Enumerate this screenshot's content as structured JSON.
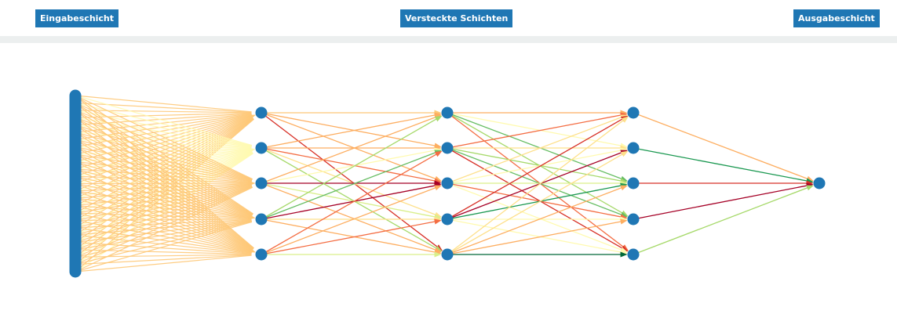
{
  "labels": {
    "input": "Eingabeschicht",
    "hidden": "Versteckte Schichten",
    "output": "Ausgabeschicht"
  },
  "colors": {
    "node": "#1f77b4",
    "label_bg": "#1f77b4",
    "label_text": "#ffffff",
    "divider": "#ecefef"
  },
  "network": {
    "layers": [
      {
        "name": "input",
        "nodes": 1,
        "bar": true
      },
      {
        "name": "hidden-1",
        "nodes": 5
      },
      {
        "name": "hidden-2",
        "nodes": 5
      },
      {
        "name": "hidden-3",
        "nodes": 5
      },
      {
        "name": "output",
        "nodes": 1
      }
    ],
    "input_fan_colors": [
      "#fec877",
      "#fffab0",
      "#fec877",
      "#fec877",
      "#fec877"
    ],
    "edges": [
      {
        "from": [
          1,
          0
        ],
        "to": [
          2,
          0
        ],
        "color": "#fec877"
      },
      {
        "from": [
          1,
          0
        ],
        "to": [
          2,
          1
        ],
        "color": "#fdae61"
      },
      {
        "from": [
          1,
          0
        ],
        "to": [
          2,
          2
        ],
        "color": "#fdae61"
      },
      {
        "from": [
          1,
          0
        ],
        "to": [
          2,
          4
        ],
        "color": "#d73027"
      },
      {
        "from": [
          1,
          1
        ],
        "to": [
          2,
          0
        ],
        "color": "#fdae61"
      },
      {
        "from": [
          1,
          1
        ],
        "to": [
          2,
          1
        ],
        "color": "#fdae61"
      },
      {
        "from": [
          1,
          1
        ],
        "to": [
          2,
          2
        ],
        "color": "#f46d43"
      },
      {
        "from": [
          1,
          1
        ],
        "to": [
          2,
          3
        ],
        "color": "#fee08b"
      },
      {
        "from": [
          1,
          1
        ],
        "to": [
          2,
          4
        ],
        "color": "#a6d96a"
      },
      {
        "from": [
          1,
          2
        ],
        "to": [
          2,
          0
        ],
        "color": "#fdae61"
      },
      {
        "from": [
          1,
          2
        ],
        "to": [
          2,
          1
        ],
        "color": "#fffab0"
      },
      {
        "from": [
          1,
          2
        ],
        "to": [
          2,
          2
        ],
        "color": "#a50026"
      },
      {
        "from": [
          1,
          2
        ],
        "to": [
          2,
          3
        ],
        "color": "#d9ef8b"
      },
      {
        "from": [
          1,
          2
        ],
        "to": [
          2,
          4
        ],
        "color": "#fdae61"
      },
      {
        "from": [
          1,
          3
        ],
        "to": [
          2,
          0
        ],
        "color": "#a6d96a"
      },
      {
        "from": [
          1,
          3
        ],
        "to": [
          2,
          1
        ],
        "color": "#66bd63"
      },
      {
        "from": [
          1,
          3
        ],
        "to": [
          2,
          2
        ],
        "color": "#a50026"
      },
      {
        "from": [
          1,
          3
        ],
        "to": [
          2,
          3
        ],
        "color": "#fee08b"
      },
      {
        "from": [
          1,
          3
        ],
        "to": [
          2,
          4
        ],
        "color": "#fdae61"
      },
      {
        "from": [
          1,
          4
        ],
        "to": [
          2,
          1
        ],
        "color": "#f46d43"
      },
      {
        "from": [
          1,
          4
        ],
        "to": [
          2,
          2
        ],
        "color": "#fdae61"
      },
      {
        "from": [
          1,
          4
        ],
        "to": [
          2,
          3
        ],
        "color": "#f46d43"
      },
      {
        "from": [
          1,
          4
        ],
        "to": [
          2,
          4
        ],
        "color": "#d9ef8b"
      },
      {
        "from": [
          2,
          0
        ],
        "to": [
          3,
          0
        ],
        "color": "#fdae61"
      },
      {
        "from": [
          2,
          0
        ],
        "to": [
          3,
          1
        ],
        "color": "#fffab0"
      },
      {
        "from": [
          2,
          0
        ],
        "to": [
          3,
          2
        ],
        "color": "#66bd63"
      },
      {
        "from": [
          2,
          0
        ],
        "to": [
          3,
          3
        ],
        "color": "#a6d96a"
      },
      {
        "from": [
          2,
          0
        ],
        "to": [
          3,
          4
        ],
        "color": "#f46d43"
      },
      {
        "from": [
          2,
          1
        ],
        "to": [
          3,
          0
        ],
        "color": "#f46d43"
      },
      {
        "from": [
          2,
          1
        ],
        "to": [
          3,
          1
        ],
        "color": "#fee08b"
      },
      {
        "from": [
          2,
          1
        ],
        "to": [
          3,
          2
        ],
        "color": "#a6d96a"
      },
      {
        "from": [
          2,
          1
        ],
        "to": [
          3,
          3
        ],
        "color": "#66bd63"
      },
      {
        "from": [
          2,
          1
        ],
        "to": [
          3,
          4
        ],
        "color": "#d73027"
      },
      {
        "from": [
          2,
          2
        ],
        "to": [
          3,
          0
        ],
        "color": "#fee08b"
      },
      {
        "from": [
          2,
          2
        ],
        "to": [
          3,
          1
        ],
        "color": "#fffab0"
      },
      {
        "from": [
          2,
          2
        ],
        "to": [
          3,
          2
        ],
        "color": "#d9ef8b"
      },
      {
        "from": [
          2,
          2
        ],
        "to": [
          3,
          3
        ],
        "color": "#f46d43"
      },
      {
        "from": [
          2,
          2
        ],
        "to": [
          3,
          4
        ],
        "color": "#fffab0"
      },
      {
        "from": [
          2,
          3
        ],
        "to": [
          3,
          0
        ],
        "color": "#d73027"
      },
      {
        "from": [
          2,
          3
        ],
        "to": [
          3,
          1
        ],
        "color": "#a50026"
      },
      {
        "from": [
          2,
          3
        ],
        "to": [
          3,
          2
        ],
        "color": "#1a9850"
      },
      {
        "from": [
          2,
          3
        ],
        "to": [
          3,
          3
        ],
        "color": "#fffab0"
      },
      {
        "from": [
          2,
          3
        ],
        "to": [
          3,
          4
        ],
        "color": "#fffab0"
      },
      {
        "from": [
          2,
          4
        ],
        "to": [
          3,
          0
        ],
        "color": "#fee08b"
      },
      {
        "from": [
          2,
          4
        ],
        "to": [
          3,
          1
        ],
        "color": "#fee08b"
      },
      {
        "from": [
          2,
          4
        ],
        "to": [
          3,
          2
        ],
        "color": "#fdae61"
      },
      {
        "from": [
          2,
          4
        ],
        "to": [
          3,
          3
        ],
        "color": "#fdae61"
      },
      {
        "from": [
          2,
          4
        ],
        "to": [
          3,
          4
        ],
        "color": "#006837"
      },
      {
        "from": [
          3,
          0
        ],
        "to": [
          4,
          0
        ],
        "color": "#fdae61"
      },
      {
        "from": [
          3,
          1
        ],
        "to": [
          4,
          0
        ],
        "color": "#1a9850"
      },
      {
        "from": [
          3,
          2
        ],
        "to": [
          4,
          0
        ],
        "color": "#d73027"
      },
      {
        "from": [
          3,
          3
        ],
        "to": [
          4,
          0
        ],
        "color": "#a50026"
      },
      {
        "from": [
          3,
          4
        ],
        "to": [
          4,
          0
        ],
        "color": "#a6d96a"
      }
    ]
  }
}
